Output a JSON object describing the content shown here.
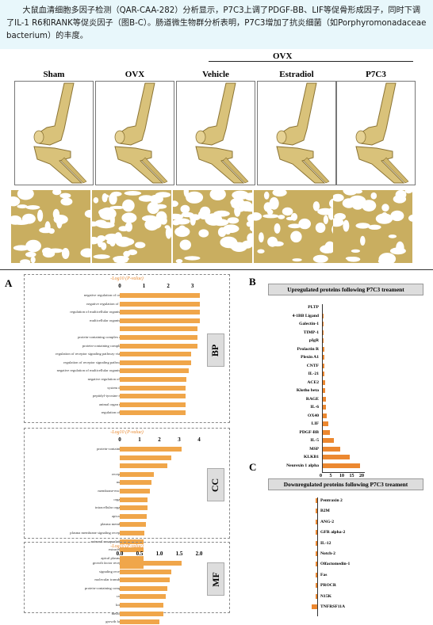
{
  "caption": "大鼠血清细胞多因子检测（QAR-CAA-282）分析显示，P7C3上调了PDGF-BB、LIF等促骨形成因子，同时下调了IL-1 R6和RANK等促炎因子（图B-C）。肠道微生物群分析表明，P7C3增加了抗炎细菌（如Porphyromonadaceae bacterium）的丰度。",
  "top": {
    "ovx_label": "OVX",
    "groups": [
      "Sham",
      "OVX",
      "Vehicle",
      "Estradiol",
      "P7C3"
    ]
  },
  "panel_a": {
    "letter": "A",
    "axis_title": "-Log10 (P-value)",
    "sections": [
      {
        "name": "BP",
        "ticks": [
          "0",
          "1",
          "2",
          "3"
        ],
        "terms": [
          "negative regulation of cell migration",
          "negative regulation of cell motility",
          "regulation of multicellular organismal process",
          "multicellular organismal process",
          "gliogenesis",
          "protein-containing complex organization",
          "protein-containing complex assembly",
          "regulation of receptor signaling pathway via JAK-STAT",
          "regulation of receptor signaling pathway via STAT",
          "negative regulation of multicellular organismal process",
          "negative regulation of locomotion",
          "system development",
          "peptidyl-tyrosine modification",
          "animal organ regeneration",
          "regulation of gliogenesis"
        ],
        "values": [
          3.3,
          3.3,
          3.3,
          3.3,
          3.2,
          3.2,
          3.2,
          2.95,
          2.95,
          2.85,
          2.75,
          2.7,
          2.7,
          2.7,
          2.7
        ],
        "xmax": 3.6
      },
      {
        "name": "CC",
        "ticks": [
          "0",
          "1",
          "2",
          "3",
          "4"
        ],
        "terms": [
          "protein-containing complex",
          "nucleus",
          "cytosol",
          "receptor complex",
          "nuclear lumen",
          "membrane-enclosed lumen",
          "organelle lumen",
          "intracellular organelle lumen",
          "apical part of cell",
          "plasma membrane region",
          "plasma membrane signaling receptor complex",
          "external encapsulating structure",
          "extracellular matrix",
          "apical plasma membrane",
          "cell surface"
        ],
        "values": [
          3.1,
          2.6,
          2.4,
          1.7,
          1.6,
          1.5,
          1.4,
          1.4,
          1.35,
          1.3,
          1.25,
          1.2,
          1.2,
          1.2,
          1.2
        ],
        "xmax": 4.4
      },
      {
        "name": "MF",
        "ticks": [
          "0.0",
          "0.5",
          "1.0",
          "1.5",
          "2.0"
        ],
        "terms": [
          "growth factor receptor binding",
          "signaling receptor activity",
          "molecular transducer activity",
          "protein-containing complex binding",
          "cation binding",
          "kinase binding",
          "metal ion binding",
          "growth factor activity"
        ],
        "values": [
          1.55,
          1.3,
          1.25,
          1.2,
          1.15,
          1.1,
          1.1,
          1.0
        ],
        "xmax": 2.2
      }
    ]
  },
  "panel_b": {
    "letter": "B",
    "title": "Upregulated proteins following P7C3 treament",
    "proteins": [
      "PLTP",
      "4-1BB Ligand",
      "Galectin-1",
      "TIMP-1",
      "pIgR",
      "Prolactin R",
      "Plexin A1",
      "CNTF",
      "IL-21",
      "ACE2",
      "Klotho beta",
      "RAGE",
      "IL-6",
      "OX40",
      "LIF",
      "PDGF-BB",
      "IL-5",
      "MSP",
      "KLKB1",
      "Neurexin 1 alpha"
    ],
    "values": [
      0.5,
      0.6,
      0.7,
      0.8,
      0.9,
      1.0,
      1.1,
      1.2,
      1.3,
      1.4,
      1.6,
      1.8,
      2.1,
      2.5,
      3.0,
      4.0,
      6.0,
      9.0,
      14.0,
      19.0
    ],
    "ticks": [
      "0",
      "5",
      "10",
      "15",
      "20"
    ],
    "xlabel": "Fold change",
    "xmax": 20
  },
  "panel_c": {
    "letter": "C",
    "title": "Downregulated proteins following P7C3 treament",
    "proteins": [
      "Pentraxin 2",
      "B2M",
      "ANG-2",
      "GFR alpha-2",
      "IL-12",
      "Notch-2",
      "Olfactomedin-1",
      "Fas",
      "PROCR",
      "N15K",
      "TNFRSF11A"
    ],
    "values": [
      0.1,
      0.1,
      0.12,
      0.12,
      0.14,
      0.15,
      0.16,
      0.18,
      0.2,
      0.25,
      0.9
    ],
    "xmax": 1
  },
  "chart_data": [
    {
      "type": "bar",
      "title": "BP",
      "categories": [
        "negative regulation of cell migration",
        "negative regulation of cell motility",
        "regulation of multicellular organismal process",
        "multicellular organismal process",
        "gliogenesis",
        "protein-containing complex organization",
        "protein-containing complex assembly",
        "regulation of receptor signaling pathway via JAK-STAT",
        "regulation of receptor signaling pathway via STAT",
        "negative regulation of multicellular organismal process",
        "negative regulation of locomotion",
        "system development",
        "peptidyl-tyrosine modification",
        "animal organ regeneration",
        "regulation of gliogenesis"
      ],
      "values": [
        3.3,
        3.3,
        3.3,
        3.3,
        3.2,
        3.2,
        3.2,
        2.95,
        2.95,
        2.85,
        2.75,
        2.7,
        2.7,
        2.7,
        2.7
      ],
      "xlabel": "-Log10 (P-value)"
    },
    {
      "type": "bar",
      "title": "CC",
      "categories": [
        "protein-containing complex",
        "nucleus",
        "cytosol",
        "receptor complex",
        "nuclear lumen",
        "membrane-enclosed lumen",
        "organelle lumen",
        "intracellular organelle lumen",
        "apical part of cell",
        "plasma membrane region",
        "plasma membrane signaling receptor complex",
        "external encapsulating structure",
        "extracellular matrix",
        "apical plasma membrane",
        "cell surface"
      ],
      "values": [
        3.1,
        2.6,
        2.4,
        1.7,
        1.6,
        1.5,
        1.4,
        1.4,
        1.35,
        1.3,
        1.25,
        1.2,
        1.2,
        1.2,
        1.2
      ],
      "xlabel": "-Log10 (P-value)"
    },
    {
      "type": "bar",
      "title": "MF",
      "categories": [
        "growth factor receptor binding",
        "signaling receptor activity",
        "molecular transducer activity",
        "protein-containing complex binding",
        "cation binding",
        "kinase binding",
        "metal ion binding",
        "growth factor activity"
      ],
      "values": [
        1.55,
        1.3,
        1.25,
        1.2,
        1.15,
        1.1,
        1.1,
        1.0
      ],
      "xlabel": "-Log10 (P-value)"
    },
    {
      "type": "bar",
      "title": "Upregulated proteins following P7C3 treament",
      "categories": [
        "PLTP",
        "4-1BB Ligand",
        "Galectin-1",
        "TIMP-1",
        "pIgR",
        "Prolactin R",
        "Plexin A1",
        "CNTF",
        "IL-21",
        "ACE2",
        "Klotho beta",
        "RAGE",
        "IL-6",
        "OX40",
        "LIF",
        "PDGF-BB",
        "IL-5",
        "MSP",
        "KLKB1",
        "Neurexin 1 alpha"
      ],
      "values": [
        0.5,
        0.6,
        0.7,
        0.8,
        0.9,
        1.0,
        1.1,
        1.2,
        1.3,
        1.4,
        1.6,
        1.8,
        2.1,
        2.5,
        3.0,
        4.0,
        6.0,
        9.0,
        14.0,
        19.0
      ],
      "xlabel": "Fold change"
    },
    {
      "type": "bar",
      "title": "Downregulated proteins following P7C3 treament",
      "categories": [
        "Pentraxin 2",
        "B2M",
        "ANG-2",
        "GFR alpha-2",
        "IL-12",
        "Notch-2",
        "Olfactomedin-1",
        "Fas",
        "PROCR",
        "N15K",
        "TNFRSF11A"
      ],
      "values": [
        0.1,
        0.1,
        0.12,
        0.12,
        0.14,
        0.15,
        0.16,
        0.18,
        0.2,
        0.25,
        0.9
      ]
    }
  ]
}
